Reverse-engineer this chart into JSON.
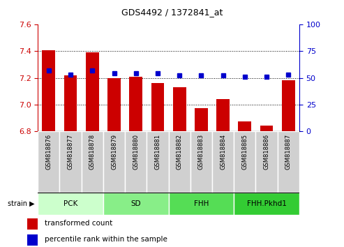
{
  "title": "GDS4492 / 1372841_at",
  "samples": [
    "GSM818876",
    "GSM818877",
    "GSM818878",
    "GSM818879",
    "GSM818880",
    "GSM818881",
    "GSM818882",
    "GSM818883",
    "GSM818884",
    "GSM818885",
    "GSM818886",
    "GSM818887"
  ],
  "bar_values": [
    7.41,
    7.22,
    7.39,
    7.2,
    7.21,
    7.16,
    7.13,
    6.97,
    7.04,
    6.87,
    6.84,
    7.18
  ],
  "percentile_values": [
    57,
    53,
    57,
    54,
    54,
    54,
    52,
    52,
    52,
    51,
    51,
    53
  ],
  "ylim_left": [
    6.8,
    7.6
  ],
  "ylim_right": [
    0,
    100
  ],
  "yticks_left": [
    6.8,
    7.0,
    7.2,
    7.4,
    7.6
  ],
  "yticks_right": [
    0,
    25,
    50,
    75,
    100
  ],
  "bar_color": "#cc0000",
  "dot_color": "#0000cc",
  "bar_bottom": 6.8,
  "groups": [
    {
      "label": "PCK",
      "start": 0,
      "end": 3,
      "color": "#ccffcc"
    },
    {
      "label": "SD",
      "start": 3,
      "end": 6,
      "color": "#88ee88"
    },
    {
      "label": "FHH",
      "start": 6,
      "end": 9,
      "color": "#55dd55"
    },
    {
      "label": "FHH.Pkhd1",
      "start": 9,
      "end": 12,
      "color": "#33cc33"
    }
  ],
  "legend_bar_label": "transformed count",
  "legend_dot_label": "percentile rank within the sample",
  "strain_label": "strain",
  "tick_color_left": "#cc0000",
  "tick_color_right": "#0000cc",
  "cell_color": "#d0d0d0",
  "cell_edge_color": "#ffffff"
}
